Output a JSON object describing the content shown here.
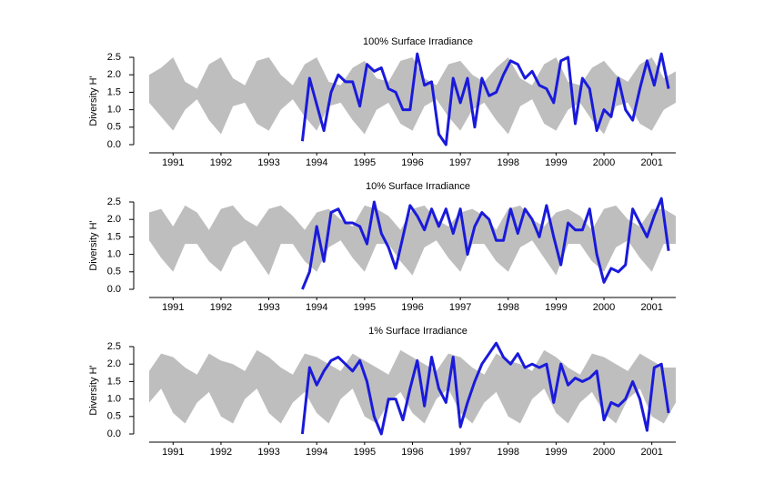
{
  "chart_data": [
    {
      "type": "line",
      "title": "100% Surface Irradiance",
      "ylabel": "Diversity H'",
      "xlim": [
        1991,
        2002
      ],
      "xticks": [
        {
          "value": 1991.5,
          "label": "1991"
        },
        {
          "value": 1992.5,
          "label": "1992"
        },
        {
          "value": 1993.5,
          "label": "1993"
        },
        {
          "value": 1994.5,
          "label": "1994"
        },
        {
          "value": 1995.5,
          "label": "1995"
        },
        {
          "value": 1996.5,
          "label": "1996"
        },
        {
          "value": 1997.5,
          "label": "1997"
        },
        {
          "value": 1998.5,
          "label": "1998"
        },
        {
          "value": 1999.5,
          "label": "1999"
        },
        {
          "value": 2000.5,
          "label": "2000"
        },
        {
          "value": 2001.5,
          "label": "2001"
        }
      ],
      "ylim": [
        0,
        2.5
      ],
      "yticks": [
        {
          "value": 0,
          "label": "0.0"
        },
        0.5,
        {
          "value": 1,
          "label": "1.0"
        },
        1.5,
        {
          "value": 2,
          "label": "2.0"
        },
        2.5
      ],
      "series": [
        {
          "type": "band",
          "color": "#bebebe",
          "x": [
            1991,
            1991.25,
            1991.5,
            1991.75,
            1992,
            1992.25,
            1992.5,
            1992.75,
            1993,
            1993.25,
            1993.5,
            1993.75,
            1994,
            1994.25,
            1994.5,
            1994.75,
            1995,
            1995.25,
            1995.5,
            1995.75,
            1996,
            1996.25,
            1996.5,
            1996.75,
            1997,
            1997.25,
            1997.5,
            1997.75,
            1998,
            1998.25,
            1998.5,
            1998.75,
            1999,
            1999.25,
            1999.5,
            1999.75,
            2000,
            2000.25,
            2000.5,
            2000.75,
            2001,
            2001.25,
            2001.5,
            2001.75,
            2002
          ],
          "upper": [
            2.0,
            2.2,
            2.5,
            1.8,
            1.6,
            2.3,
            2.5,
            1.9,
            1.7,
            2.4,
            2.5,
            2.0,
            1.7,
            2.3,
            2.5,
            1.8,
            1.7,
            2.2,
            2.4,
            1.9,
            1.8,
            2.4,
            2.5,
            1.9,
            1.7,
            2.3,
            2.4,
            2.0,
            1.8,
            2.2,
            2.5,
            1.9,
            1.7,
            2.3,
            2.5,
            1.8,
            1.7,
            2.2,
            2.4,
            2.0,
            1.8,
            2.3,
            2.5,
            1.9,
            2.1
          ],
          "lower": [
            1.2,
            0.8,
            0.4,
            1.0,
            1.3,
            0.7,
            0.3,
            1.1,
            1.2,
            0.6,
            0.4,
            1.0,
            1.3,
            0.8,
            0.4,
            1.1,
            1.2,
            0.7,
            0.3,
            1.0,
            1.2,
            0.6,
            0.4,
            1.1,
            1.3,
            0.8,
            0.4,
            1.0,
            1.2,
            0.7,
            0.3,
            1.1,
            1.3,
            0.6,
            0.4,
            1.0,
            1.2,
            0.7,
            0.3,
            1.1,
            1.2,
            0.6,
            0.4,
            1.0,
            1.2
          ]
        },
        {
          "type": "line",
          "color": "#1a1adb",
          "x": [
            1994.2,
            1994.35,
            1994.5,
            1994.65,
            1994.8,
            1994.95,
            1995.1,
            1995.25,
            1995.4,
            1995.55,
            1995.7,
            1995.85,
            1996.0,
            1996.15,
            1996.3,
            1996.45,
            1996.6,
            1996.75,
            1996.9,
            1997.05,
            1997.2,
            1997.35,
            1997.5,
            1997.65,
            1997.8,
            1997.95,
            1998.1,
            1998.25,
            1998.4,
            1998.55,
            1998.7,
            1998.85,
            1999.0,
            1999.15,
            1999.3,
            1999.45,
            1999.6,
            1999.75,
            1999.9,
            2000.05,
            2000.2,
            2000.35,
            2000.5,
            2000.65,
            2000.8,
            2000.95,
            2001.1,
            2001.25,
            2001.4,
            2001.55,
            2001.7,
            2001.85
          ],
          "values": [
            0.1,
            1.9,
            1.15,
            0.4,
            1.5,
            2.0,
            1.8,
            1.8,
            1.1,
            2.3,
            2.1,
            2.2,
            1.6,
            1.5,
            1.0,
            1.0,
            2.6,
            1.7,
            1.8,
            0.3,
            0.0,
            1.9,
            1.2,
            1.9,
            0.5,
            1.9,
            1.4,
            1.5,
            2.0,
            2.4,
            2.3,
            1.9,
            2.1,
            1.7,
            1.6,
            1.2,
            2.4,
            2.5,
            0.6,
            1.9,
            1.6,
            0.4,
            1.0,
            0.8,
            1.9,
            1.0,
            0.7,
            1.6,
            2.4,
            1.7,
            2.6,
            1.6
          ]
        }
      ]
    },
    {
      "type": "line",
      "title": "10% Surface Irradiance",
      "ylabel": "Diversity H'",
      "xlim": [
        1991,
        2002
      ],
      "xticks": [
        {
          "value": 1991.5,
          "label": "1991"
        },
        {
          "value": 1992.5,
          "label": "1992"
        },
        {
          "value": 1993.5,
          "label": "1993"
        },
        {
          "value": 1994.5,
          "label": "1994"
        },
        {
          "value": 1995.5,
          "label": "1995"
        },
        {
          "value": 1996.5,
          "label": "1996"
        },
        {
          "value": 1997.5,
          "label": "1997"
        },
        {
          "value": 1998.5,
          "label": "1998"
        },
        {
          "value": 1999.5,
          "label": "1999"
        },
        {
          "value": 2000.5,
          "label": "2000"
        },
        {
          "value": 2001.5,
          "label": "2001"
        }
      ],
      "ylim": [
        0,
        2.5
      ],
      "yticks": [
        {
          "value": 0,
          "label": "0.0"
        },
        0.5,
        {
          "value": 1,
          "label": "1.0"
        },
        1.5,
        {
          "value": 2,
          "label": "2.0"
        },
        2.5
      ],
      "series": [
        {
          "type": "band",
          "color": "#bebebe",
          "x": [
            1991,
            1991.25,
            1991.5,
            1991.75,
            1992,
            1992.25,
            1992.5,
            1992.75,
            1993,
            1993.25,
            1993.5,
            1993.75,
            1994,
            1994.25,
            1994.5,
            1994.75,
            1995,
            1995.25,
            1995.5,
            1995.75,
            1996,
            1996.25,
            1996.5,
            1996.75,
            1997,
            1997.25,
            1997.5,
            1997.75,
            1998,
            1998.25,
            1998.5,
            1998.75,
            1999,
            1999.25,
            1999.5,
            1999.75,
            2000,
            2000.25,
            2000.5,
            2000.75,
            2001,
            2001.25,
            2001.5,
            2001.75,
            2002
          ],
          "upper": [
            2.2,
            2.3,
            1.8,
            2.4,
            2.2,
            1.7,
            2.3,
            2.4,
            2.0,
            1.8,
            2.3,
            2.4,
            2.1,
            1.7,
            2.2,
            2.3,
            2.0,
            1.8,
            2.4,
            2.3,
            2.1,
            1.7,
            2.3,
            2.4,
            2.0,
            1.8,
            2.2,
            2.3,
            2.1,
            1.7,
            2.3,
            2.4,
            2.0,
            1.8,
            2.2,
            2.3,
            2.1,
            1.7,
            2.3,
            2.4,
            2.0,
            1.8,
            2.3,
            2.3,
            2.1
          ],
          "lower": [
            1.4,
            0.9,
            0.5,
            1.3,
            1.3,
            0.8,
            0.5,
            1.2,
            1.4,
            0.9,
            0.4,
            1.3,
            1.3,
            0.8,
            0.5,
            1.2,
            1.4,
            0.9,
            0.5,
            1.3,
            1.3,
            0.8,
            0.4,
            1.2,
            1.4,
            0.9,
            0.5,
            1.3,
            1.3,
            0.8,
            0.5,
            1.2,
            1.4,
            0.9,
            0.4,
            1.3,
            1.3,
            0.8,
            0.5,
            1.2,
            1.4,
            0.9,
            0.5,
            1.3,
            1.3
          ]
        },
        {
          "type": "line",
          "color": "#1a1adb",
          "x": [
            1994.2,
            1994.35,
            1994.5,
            1994.65,
            1994.8,
            1994.95,
            1995.1,
            1995.25,
            1995.4,
            1995.55,
            1995.7,
            1995.85,
            1996.0,
            1996.15,
            1996.3,
            1996.45,
            1996.6,
            1996.75,
            1996.9,
            1997.05,
            1997.2,
            1997.35,
            1997.5,
            1997.65,
            1997.8,
            1997.95,
            1998.1,
            1998.25,
            1998.4,
            1998.55,
            1998.7,
            1998.85,
            1999.0,
            1999.15,
            1999.3,
            1999.45,
            1999.6,
            1999.75,
            1999.9,
            2000.05,
            2000.2,
            2000.35,
            2000.5,
            2000.65,
            2000.8,
            2000.95,
            2001.1,
            2001.25,
            2001.4,
            2001.55,
            2001.7,
            2001.85
          ],
          "values": [
            0.0,
            0.5,
            1.8,
            0.8,
            2.2,
            2.3,
            1.9,
            1.9,
            1.8,
            1.3,
            2.5,
            1.6,
            1.2,
            0.6,
            1.5,
            2.4,
            2.1,
            1.7,
            2.3,
            1.8,
            2.3,
            1.6,
            2.3,
            1.0,
            1.8,
            2.2,
            2.0,
            1.4,
            1.4,
            2.3,
            1.6,
            2.3,
            2.0,
            1.5,
            2.4,
            1.5,
            0.7,
            1.9,
            1.7,
            1.7,
            2.3,
            1.0,
            0.2,
            0.6,
            0.5,
            0.7,
            2.3,
            1.9,
            1.5,
            2.1,
            2.6,
            1.1
          ]
        }
      ]
    },
    {
      "type": "line",
      "title": "1% Surface Irradiance",
      "ylabel": "Diversity H'",
      "xlim": [
        1991,
        2002
      ],
      "xticks": [
        {
          "value": 1991.5,
          "label": "1991"
        },
        {
          "value": 1992.5,
          "label": "1992"
        },
        {
          "value": 1993.5,
          "label": "1993"
        },
        {
          "value": 1994.5,
          "label": "1994"
        },
        {
          "value": 1995.5,
          "label": "1995"
        },
        {
          "value": 1996.5,
          "label": "1996"
        },
        {
          "value": 1997.5,
          "label": "1997"
        },
        {
          "value": 1998.5,
          "label": "1998"
        },
        {
          "value": 1999.5,
          "label": "1999"
        },
        {
          "value": 2000.5,
          "label": "2000"
        },
        {
          "value": 2001.5,
          "label": "2001"
        }
      ],
      "ylim": [
        0,
        2.5
      ],
      "yticks": [
        {
          "value": 0,
          "label": "0.0"
        },
        0.5,
        {
          "value": 1,
          "label": "1.0"
        },
        1.5,
        {
          "value": 2,
          "label": "2.0"
        },
        2.5
      ],
      "series": [
        {
          "type": "band",
          "color": "#bebebe",
          "x": [
            1991,
            1991.25,
            1991.5,
            1991.75,
            1992,
            1992.25,
            1992.5,
            1992.75,
            1993,
            1993.25,
            1993.5,
            1993.75,
            1994,
            1994.25,
            1994.5,
            1994.75,
            1995,
            1995.25,
            1995.5,
            1995.75,
            1996,
            1996.25,
            1996.5,
            1996.75,
            1997,
            1997.25,
            1997.5,
            1997.75,
            1998,
            1998.25,
            1998.5,
            1998.75,
            1999,
            1999.25,
            1999.5,
            1999.75,
            2000,
            2000.25,
            2000.5,
            2000.75,
            2001,
            2001.25,
            2001.5,
            2001.75,
            2002
          ],
          "upper": [
            1.8,
            2.3,
            2.2,
            1.9,
            1.7,
            2.3,
            2.1,
            2.0,
            1.8,
            2.4,
            2.2,
            1.9,
            1.7,
            2.3,
            2.2,
            2.0,
            1.8,
            2.3,
            2.1,
            1.9,
            1.7,
            2.4,
            2.2,
            2.0,
            1.8,
            2.3,
            2.2,
            1.9,
            1.7,
            2.3,
            2.1,
            2.0,
            1.8,
            2.4,
            2.2,
            1.9,
            1.7,
            2.3,
            2.2,
            2.0,
            1.8,
            2.3,
            2.1,
            1.9,
            1.9
          ],
          "lower": [
            0.9,
            1.3,
            0.6,
            0.3,
            0.9,
            1.2,
            0.5,
            0.3,
            1.0,
            1.3,
            0.6,
            0.3,
            0.9,
            1.2,
            0.6,
            0.3,
            1.0,
            1.3,
            0.5,
            0.3,
            0.9,
            1.2,
            0.6,
            0.3,
            1.0,
            1.3,
            0.6,
            0.3,
            0.9,
            1.2,
            0.5,
            0.3,
            1.0,
            1.3,
            0.6,
            0.3,
            0.9,
            1.2,
            0.6,
            0.3,
            1.0,
            1.3,
            0.5,
            0.3,
            0.9
          ]
        },
        {
          "type": "line",
          "color": "#1a1adb",
          "x": [
            1994.2,
            1994.35,
            1994.5,
            1994.65,
            1994.8,
            1994.95,
            1995.1,
            1995.25,
            1995.4,
            1995.55,
            1995.7,
            1995.85,
            1996.0,
            1996.15,
            1996.3,
            1996.45,
            1996.6,
            1996.75,
            1996.9,
            1997.05,
            1997.2,
            1997.35,
            1997.5,
            1997.65,
            1997.8,
            1997.95,
            1998.1,
            1998.25,
            1998.4,
            1998.55,
            1998.7,
            1998.85,
            1999.0,
            1999.15,
            1999.3,
            1999.45,
            1999.6,
            1999.75,
            1999.9,
            2000.05,
            2000.2,
            2000.35,
            2000.5,
            2000.65,
            2000.8,
            2000.95,
            2001.1,
            2001.25,
            2001.4,
            2001.55,
            2001.7,
            2001.85
          ],
          "values": [
            0.0,
            1.9,
            1.4,
            1.8,
            2.1,
            2.2,
            2.0,
            1.8,
            2.1,
            1.5,
            0.5,
            0.0,
            1.0,
            1.0,
            0.4,
            1.3,
            2.1,
            0.8,
            2.2,
            1.3,
            0.9,
            2.2,
            0.2,
            0.9,
            1.5,
            2.0,
            2.3,
            2.6,
            2.2,
            2.0,
            2.3,
            1.9,
            2.0,
            1.9,
            2.0,
            0.9,
            2.0,
            1.4,
            1.6,
            1.5,
            1.6,
            1.8,
            0.4,
            0.9,
            0.8,
            1.0,
            1.5,
            1.0,
            0.1,
            1.9,
            2.0,
            0.6
          ]
        }
      ]
    }
  ]
}
